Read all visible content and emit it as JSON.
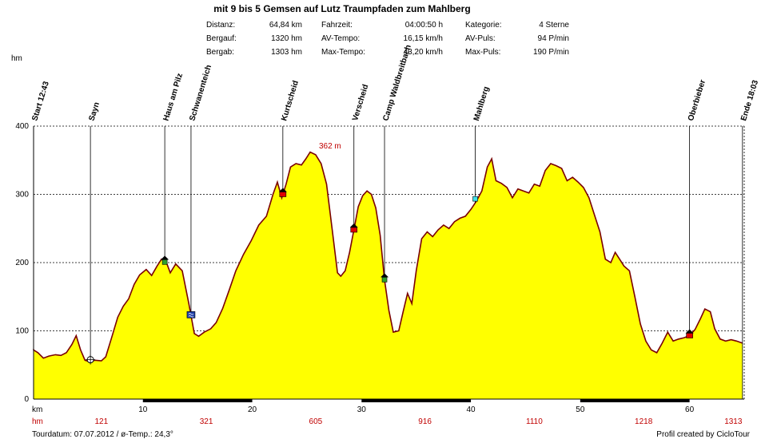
{
  "chart_data": {
    "type": "area",
    "title": "mit 9 bis 5 Gemsen auf Lutz Traumpfaden zum Mahlberg",
    "ylabel": "hm",
    "xlabel": "km",
    "xlim": [
      0,
      65
    ],
    "ylim": [
      0,
      400
    ],
    "grid": true,
    "fill_color": "#ffff00",
    "line_color": "#7a0000",
    "y_ticks": [
      "0",
      "100",
      "200",
      "300",
      "400"
    ],
    "x_ticks": [
      {
        "label": "10",
        "x": 10
      },
      {
        "label": "20",
        "x": 20
      },
      {
        "label": "30",
        "x": 30
      },
      {
        "label": "40",
        "x": 40
      },
      {
        "label": "50",
        "x": 50
      },
      {
        "label": "60",
        "x": 60
      }
    ],
    "profile": [
      [
        0,
        72
      ],
      [
        0.4,
        68
      ],
      [
        0.9,
        60
      ],
      [
        1.4,
        63
      ],
      [
        2.0,
        65
      ],
      [
        2.5,
        64
      ],
      [
        3.0,
        68
      ],
      [
        3.5,
        80
      ],
      [
        3.9,
        93
      ],
      [
        4.3,
        72
      ],
      [
        4.7,
        57
      ],
      [
        5.1,
        55
      ],
      [
        5.6,
        57
      ],
      [
        6.2,
        56
      ],
      [
        6.6,
        62
      ],
      [
        7.1,
        88
      ],
      [
        7.7,
        120
      ],
      [
        8.2,
        136
      ],
      [
        8.7,
        147
      ],
      [
        9.2,
        168
      ],
      [
        9.7,
        182
      ],
      [
        10.3,
        190
      ],
      [
        10.8,
        181
      ],
      [
        11.3,
        195
      ],
      [
        11.7,
        205
      ],
      [
        12.2,
        198
      ],
      [
        12.5,
        185
      ],
      [
        13.0,
        198
      ],
      [
        13.6,
        188
      ],
      [
        14.2,
        140
      ],
      [
        14.7,
        96
      ],
      [
        15.1,
        92
      ],
      [
        15.6,
        98
      ],
      [
        16.2,
        103
      ],
      [
        16.7,
        112
      ],
      [
        17.3,
        133
      ],
      [
        17.9,
        160
      ],
      [
        18.5,
        188
      ],
      [
        19.2,
        212
      ],
      [
        19.9,
        232
      ],
      [
        20.6,
        255
      ],
      [
        21.3,
        268
      ],
      [
        21.9,
        300
      ],
      [
        22.3,
        318
      ],
      [
        22.7,
        295
      ],
      [
        23.1,
        315
      ],
      [
        23.5,
        340
      ],
      [
        24.0,
        345
      ],
      [
        24.5,
        343
      ],
      [
        24.9,
        352
      ],
      [
        25.3,
        362
      ],
      [
        25.8,
        358
      ],
      [
        26.3,
        345
      ],
      [
        26.8,
        315
      ],
      [
        27.3,
        250
      ],
      [
        27.8,
        185
      ],
      [
        28.1,
        180
      ],
      [
        28.5,
        188
      ],
      [
        28.9,
        215
      ],
      [
        29.3,
        248
      ],
      [
        29.7,
        282
      ],
      [
        30.1,
        298
      ],
      [
        30.5,
        305
      ],
      [
        30.9,
        300
      ],
      [
        31.3,
        280
      ],
      [
        31.7,
        240
      ],
      [
        32.1,
        175
      ],
      [
        32.5,
        130
      ],
      [
        32.9,
        98
      ],
      [
        33.4,
        100
      ],
      [
        33.8,
        128
      ],
      [
        34.2,
        155
      ],
      [
        34.6,
        140
      ],
      [
        35.0,
        188
      ],
      [
        35.5,
        235
      ],
      [
        36.0,
        245
      ],
      [
        36.5,
        238
      ],
      [
        37.0,
        248
      ],
      [
        37.5,
        255
      ],
      [
        38.0,
        250
      ],
      [
        38.5,
        260
      ],
      [
        39.0,
        265
      ],
      [
        39.5,
        268
      ],
      [
        40.0,
        278
      ],
      [
        40.5,
        290
      ],
      [
        41.0,
        305
      ],
      [
        41.5,
        340
      ],
      [
        41.9,
        352
      ],
      [
        42.3,
        320
      ],
      [
        42.8,
        316
      ],
      [
        43.3,
        310
      ],
      [
        43.8,
        295
      ],
      [
        44.3,
        308
      ],
      [
        44.8,
        305
      ],
      [
        45.3,
        302
      ],
      [
        45.8,
        315
      ],
      [
        46.3,
        312
      ],
      [
        46.8,
        335
      ],
      [
        47.3,
        345
      ],
      [
        47.8,
        342
      ],
      [
        48.3,
        338
      ],
      [
        48.8,
        320
      ],
      [
        49.3,
        325
      ],
      [
        49.8,
        318
      ],
      [
        50.3,
        310
      ],
      [
        50.8,
        295
      ],
      [
        51.3,
        270
      ],
      [
        51.8,
        245
      ],
      [
        52.3,
        205
      ],
      [
        52.8,
        200
      ],
      [
        53.2,
        215
      ],
      [
        53.6,
        205
      ],
      [
        54.0,
        195
      ],
      [
        54.5,
        188
      ],
      [
        55.0,
        150
      ],
      [
        55.5,
        110
      ],
      [
        56.0,
        85
      ],
      [
        56.5,
        72
      ],
      [
        57.0,
        68
      ],
      [
        57.5,
        82
      ],
      [
        58.0,
        98
      ],
      [
        58.5,
        85
      ],
      [
        59.0,
        88
      ],
      [
        59.5,
        90
      ],
      [
        60.0,
        93
      ],
      [
        60.5,
        102
      ],
      [
        61.0,
        118
      ],
      [
        61.4,
        132
      ],
      [
        61.9,
        128
      ],
      [
        62.3,
        103
      ],
      [
        62.8,
        88
      ],
      [
        63.3,
        85
      ],
      [
        63.8,
        87
      ],
      [
        64.3,
        85
      ],
      [
        64.84,
        82
      ]
    ],
    "peak_label": {
      "text": "362 m",
      "x": 26.1,
      "y": 367
    },
    "waypoints": [
      {
        "label": "Start 12:43",
        "x": 0
      },
      {
        "label": "Sayn",
        "x": 5.2,
        "marker": "sun"
      },
      {
        "label": "Haus am Pilz",
        "x": 12.0,
        "marker": "tree"
      },
      {
        "label": "Schwanenteich",
        "x": 14.4,
        "marker": "water"
      },
      {
        "label": "Kurtscheid",
        "x": 22.8,
        "marker": "peak"
      },
      {
        "label": "Verscheid",
        "x": 29.3,
        "marker": "peak"
      },
      {
        "label": "Camp Waldbreitbach",
        "x": 32.1,
        "marker": "house"
      },
      {
        "label": "Mahlberg",
        "x": 40.4,
        "marker": "cyan"
      },
      {
        "label": "Oberbieber",
        "x": 60.0,
        "marker": "peak"
      },
      {
        "label": "Ende 18:03",
        "x": 64.84
      }
    ],
    "bottom_row": {
      "label": "hm",
      "values": [
        {
          "text": "121",
          "x": 6.2
        },
        {
          "text": "321",
          "x": 15.8
        },
        {
          "text": "605",
          "x": 25.8
        },
        {
          "text": "916",
          "x": 35.8
        },
        {
          "text": "1110",
          "x": 45.8
        },
        {
          "text": "1218",
          "x": 55.8
        },
        {
          "text": "1313",
          "x": 64.0
        }
      ]
    },
    "scale_segments": [
      [
        10,
        20
      ],
      [
        30,
        40
      ],
      [
        50,
        60
      ]
    ]
  },
  "stats": [
    {
      "label": "Distanz:",
      "value": "64,84 km"
    },
    {
      "label": "Bergauf:",
      "value": "1320 hm"
    },
    {
      "label": "Bergab:",
      "value": "1303 hm"
    },
    {
      "label": "Fahrzeit:",
      "value": "04:00:50 h"
    },
    {
      "label": "AV-Tempo:",
      "value": "16,15 km/h"
    },
    {
      "label": "Max-Tempo:",
      "value": "43,20 km/h"
    },
    {
      "label": "Kategorie:",
      "value": "4 Sterne"
    },
    {
      "label": "AV-Puls:",
      "value": "94 P/min"
    },
    {
      "label": "Max-Puls:",
      "value": "190 P/min"
    }
  ],
  "footer": {
    "left": "Tourdatum: 07.07.2012  /  ø-Temp.: 24,3°",
    "right": "Profil created by CicloTour"
  }
}
